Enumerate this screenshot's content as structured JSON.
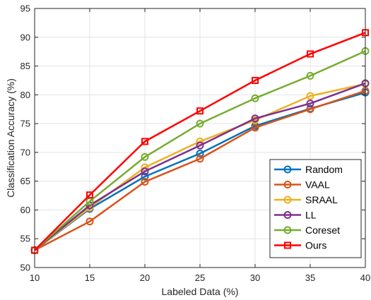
{
  "chart_data": {
    "type": "line",
    "xlabel": "Labeled Data (%)",
    "ylabel": "Classification Accuracy (%)",
    "xlim": [
      10,
      40
    ],
    "ylim": [
      50,
      95
    ],
    "x_ticks": [
      10,
      15,
      20,
      25,
      30,
      35,
      40
    ],
    "y_ticks": [
      50,
      55,
      60,
      65,
      70,
      75,
      80,
      85,
      90,
      95
    ],
    "grid": true,
    "legend_position": "bottom-right",
    "x": [
      10,
      15,
      20,
      25,
      30,
      35,
      40
    ],
    "series": [
      {
        "name": "Random",
        "color": "#0072BD",
        "marker": "circle",
        "values": [
          53.0,
          60.2,
          65.8,
          69.8,
          74.6,
          77.6,
          80.4
        ]
      },
      {
        "name": "VAAL",
        "color": "#D95319",
        "marker": "circle",
        "values": [
          53.0,
          58.0,
          64.9,
          68.9,
          74.3,
          77.5,
          80.7
        ]
      },
      {
        "name": "SRAAL",
        "color": "#EDB120",
        "marker": "circle",
        "values": [
          53.0,
          60.4,
          67.4,
          71.9,
          75.6,
          79.8,
          81.9
        ]
      },
      {
        "name": "LL",
        "color": "#7E2F8E",
        "marker": "circle",
        "values": [
          53.0,
          60.8,
          66.7,
          71.2,
          75.9,
          78.5,
          82.0
        ]
      },
      {
        "name": "Coreset",
        "color": "#77AC30",
        "marker": "circle",
        "values": [
          53.0,
          61.5,
          69.2,
          75.0,
          79.4,
          83.3,
          87.6
        ]
      },
      {
        "name": "Ours",
        "color": "#FF0000",
        "marker": "square",
        "values": [
          53.0,
          62.6,
          71.9,
          77.2,
          82.5,
          87.1,
          90.8
        ]
      }
    ]
  }
}
